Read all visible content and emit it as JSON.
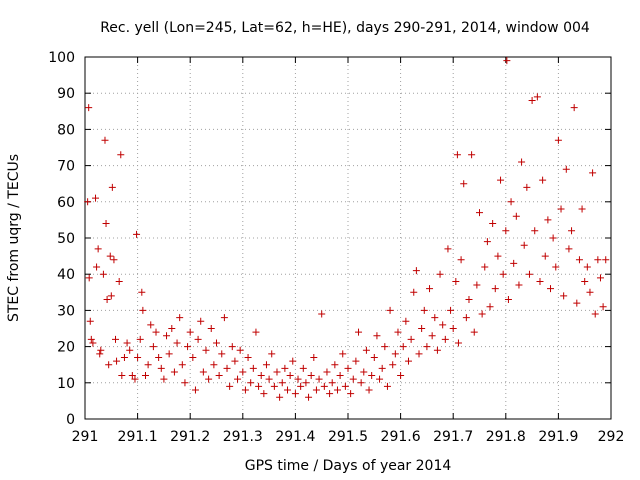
{
  "chart_data": {
    "type": "scatter",
    "title": "Rec. yell (Lon=245, Lat=62, h=HE), days 290-291, 2014, window 004",
    "xlabel": "GPS time / Days of year 2014",
    "ylabel": "STEC from uqrg / TECUs",
    "xlim": [
      291,
      292
    ],
    "ylim": [
      0,
      100
    ],
    "xticks": [
      291,
      291.1,
      291.2,
      291.3,
      291.4,
      291.5,
      291.6,
      291.7,
      291.8,
      291.9,
      292
    ],
    "xtick_labels": [
      "291",
      "291.1",
      "291.2",
      "291.3",
      "291.4",
      "291.5",
      "291.6",
      "291.7",
      "291.8",
      "291.9",
      "292"
    ],
    "yticks": [
      0,
      10,
      20,
      30,
      40,
      50,
      60,
      70,
      80,
      90,
      100
    ],
    "ytick_labels": [
      "0",
      "10",
      "20",
      "30",
      "40",
      "50",
      "60",
      "70",
      "80",
      "90",
      "100"
    ],
    "grid": true,
    "marker": "+",
    "color": "#c00000",
    "points": [
      [
        291.005,
        60
      ],
      [
        291.007,
        86
      ],
      [
        291.008,
        39
      ],
      [
        291.01,
        27
      ],
      [
        291.012,
        22
      ],
      [
        291.015,
        21
      ],
      [
        291.02,
        61
      ],
      [
        291.022,
        42
      ],
      [
        291.025,
        47
      ],
      [
        291.028,
        18
      ],
      [
        291.03,
        19
      ],
      [
        291.035,
        40
      ],
      [
        291.038,
        77
      ],
      [
        291.04,
        54
      ],
      [
        291.042,
        33
      ],
      [
        291.045,
        15
      ],
      [
        291.048,
        45
      ],
      [
        291.05,
        34
      ],
      [
        291.052,
        64
      ],
      [
        291.055,
        44
      ],
      [
        291.058,
        22
      ],
      [
        291.06,
        16
      ],
      [
        291.065,
        38
      ],
      [
        291.068,
        73
      ],
      [
        291.07,
        12
      ],
      [
        291.075,
        17
      ],
      [
        291.08,
        21
      ],
      [
        291.085,
        19
      ],
      [
        291.09,
        12
      ],
      [
        291.095,
        11
      ],
      [
        291.098,
        51
      ],
      [
        291.1,
        17
      ],
      [
        291.105,
        22
      ],
      [
        291.108,
        35
      ],
      [
        291.11,
        30
      ],
      [
        291.115,
        12
      ],
      [
        291.12,
        15
      ],
      [
        291.125,
        26
      ],
      [
        291.13,
        20
      ],
      [
        291.135,
        24
      ],
      [
        291.14,
        17
      ],
      [
        291.145,
        14
      ],
      [
        291.15,
        11
      ],
      [
        291.155,
        23
      ],
      [
        291.16,
        18
      ],
      [
        291.165,
        25
      ],
      [
        291.17,
        13
      ],
      [
        291.175,
        21
      ],
      [
        291.18,
        28
      ],
      [
        291.185,
        15
      ],
      [
        291.19,
        10
      ],
      [
        291.195,
        20
      ],
      [
        291.2,
        24
      ],
      [
        291.205,
        17
      ],
      [
        291.21,
        8
      ],
      [
        291.215,
        22
      ],
      [
        291.22,
        27
      ],
      [
        291.225,
        13
      ],
      [
        291.23,
        19
      ],
      [
        291.235,
        11
      ],
      [
        291.24,
        25
      ],
      [
        291.245,
        15
      ],
      [
        291.25,
        21
      ],
      [
        291.255,
        12
      ],
      [
        291.26,
        18
      ],
      [
        291.265,
        28
      ],
      [
        291.27,
        14
      ],
      [
        291.275,
        9
      ],
      [
        291.28,
        20
      ],
      [
        291.285,
        16
      ],
      [
        291.29,
        11
      ],
      [
        291.295,
        19
      ],
      [
        291.3,
        13
      ],
      [
        291.305,
        8
      ],
      [
        291.31,
        17
      ],
      [
        291.315,
        10
      ],
      [
        291.32,
        14
      ],
      [
        291.325,
        24
      ],
      [
        291.33,
        9
      ],
      [
        291.335,
        12
      ],
      [
        291.34,
        7
      ],
      [
        291.345,
        15
      ],
      [
        291.35,
        11
      ],
      [
        291.355,
        18
      ],
      [
        291.36,
        9
      ],
      [
        291.365,
        13
      ],
      [
        291.37,
        6
      ],
      [
        291.375,
        10
      ],
      [
        291.38,
        14
      ],
      [
        291.385,
        8
      ],
      [
        291.39,
        12
      ],
      [
        291.395,
        16
      ],
      [
        291.4,
        7
      ],
      [
        291.405,
        11
      ],
      [
        291.41,
        9
      ],
      [
        291.415,
        14
      ],
      [
        291.42,
        10
      ],
      [
        291.425,
        6
      ],
      [
        291.43,
        12
      ],
      [
        291.435,
        17
      ],
      [
        291.44,
        8
      ],
      [
        291.445,
        11
      ],
      [
        291.45,
        29
      ],
      [
        291.455,
        9
      ],
      [
        291.46,
        13
      ],
      [
        291.465,
        7
      ],
      [
        291.47,
        10
      ],
      [
        291.475,
        15
      ],
      [
        291.48,
        8
      ],
      [
        291.485,
        12
      ],
      [
        291.49,
        18
      ],
      [
        291.495,
        9
      ],
      [
        291.5,
        14
      ],
      [
        291.505,
        7
      ],
      [
        291.51,
        11
      ],
      [
        291.515,
        16
      ],
      [
        291.52,
        24
      ],
      [
        291.525,
        10
      ],
      [
        291.53,
        13
      ],
      [
        291.535,
        19
      ],
      [
        291.54,
        8
      ],
      [
        291.545,
        12
      ],
      [
        291.55,
        17
      ],
      [
        291.555,
        23
      ],
      [
        291.56,
        11
      ],
      [
        291.565,
        14
      ],
      [
        291.57,
        20
      ],
      [
        291.575,
        9
      ],
      [
        291.58,
        30
      ],
      [
        291.585,
        15
      ],
      [
        291.59,
        18
      ],
      [
        291.595,
        24
      ],
      [
        291.6,
        12
      ],
      [
        291.605,
        20
      ],
      [
        291.61,
        27
      ],
      [
        291.615,
        16
      ],
      [
        291.62,
        22
      ],
      [
        291.625,
        35
      ],
      [
        291.63,
        41
      ],
      [
        291.635,
        18
      ],
      [
        291.64,
        25
      ],
      [
        291.645,
        30
      ],
      [
        291.65,
        20
      ],
      [
        291.655,
        36
      ],
      [
        291.66,
        23
      ],
      [
        291.665,
        28
      ],
      [
        291.67,
        19
      ],
      [
        291.675,
        40
      ],
      [
        291.68,
        26
      ],
      [
        291.685,
        22
      ],
      [
        291.69,
        47
      ],
      [
        291.695,
        30
      ],
      [
        291.7,
        25
      ],
      [
        291.705,
        38
      ],
      [
        291.708,
        73
      ],
      [
        291.71,
        21
      ],
      [
        291.715,
        44
      ],
      [
        291.72,
        65
      ],
      [
        291.725,
        28
      ],
      [
        291.73,
        33
      ],
      [
        291.735,
        73
      ],
      [
        291.74,
        24
      ],
      [
        291.745,
        37
      ],
      [
        291.75,
        57
      ],
      [
        291.755,
        29
      ],
      [
        291.76,
        42
      ],
      [
        291.765,
        49
      ],
      [
        291.77,
        31
      ],
      [
        291.775,
        54
      ],
      [
        291.78,
        36
      ],
      [
        291.785,
        45
      ],
      [
        291.79,
        66
      ],
      [
        291.795,
        40
      ],
      [
        291.8,
        52
      ],
      [
        291.802,
        99
      ],
      [
        291.805,
        33
      ],
      [
        291.81,
        60
      ],
      [
        291.815,
        43
      ],
      [
        291.82,
        56
      ],
      [
        291.825,
        37
      ],
      [
        291.83,
        71
      ],
      [
        291.835,
        48
      ],
      [
        291.84,
        64
      ],
      [
        291.845,
        40
      ],
      [
        291.85,
        88
      ],
      [
        291.855,
        52
      ],
      [
        291.86,
        89
      ],
      [
        291.865,
        38
      ],
      [
        291.87,
        66
      ],
      [
        291.875,
        45
      ],
      [
        291.88,
        55
      ],
      [
        291.885,
        36
      ],
      [
        291.89,
        50
      ],
      [
        291.895,
        42
      ],
      [
        291.9,
        77
      ],
      [
        291.905,
        58
      ],
      [
        291.91,
        34
      ],
      [
        291.915,
        69
      ],
      [
        291.92,
        47
      ],
      [
        291.925,
        52
      ],
      [
        291.93,
        86
      ],
      [
        291.935,
        32
      ],
      [
        291.94,
        44
      ],
      [
        291.945,
        58
      ],
      [
        291.95,
        38
      ],
      [
        291.955,
        42
      ],
      [
        291.96,
        35
      ],
      [
        291.965,
        68
      ],
      [
        291.97,
        29
      ],
      [
        291.975,
        44
      ],
      [
        291.98,
        39
      ],
      [
        291.985,
        31
      ],
      [
        291.99,
        44
      ]
    ]
  }
}
